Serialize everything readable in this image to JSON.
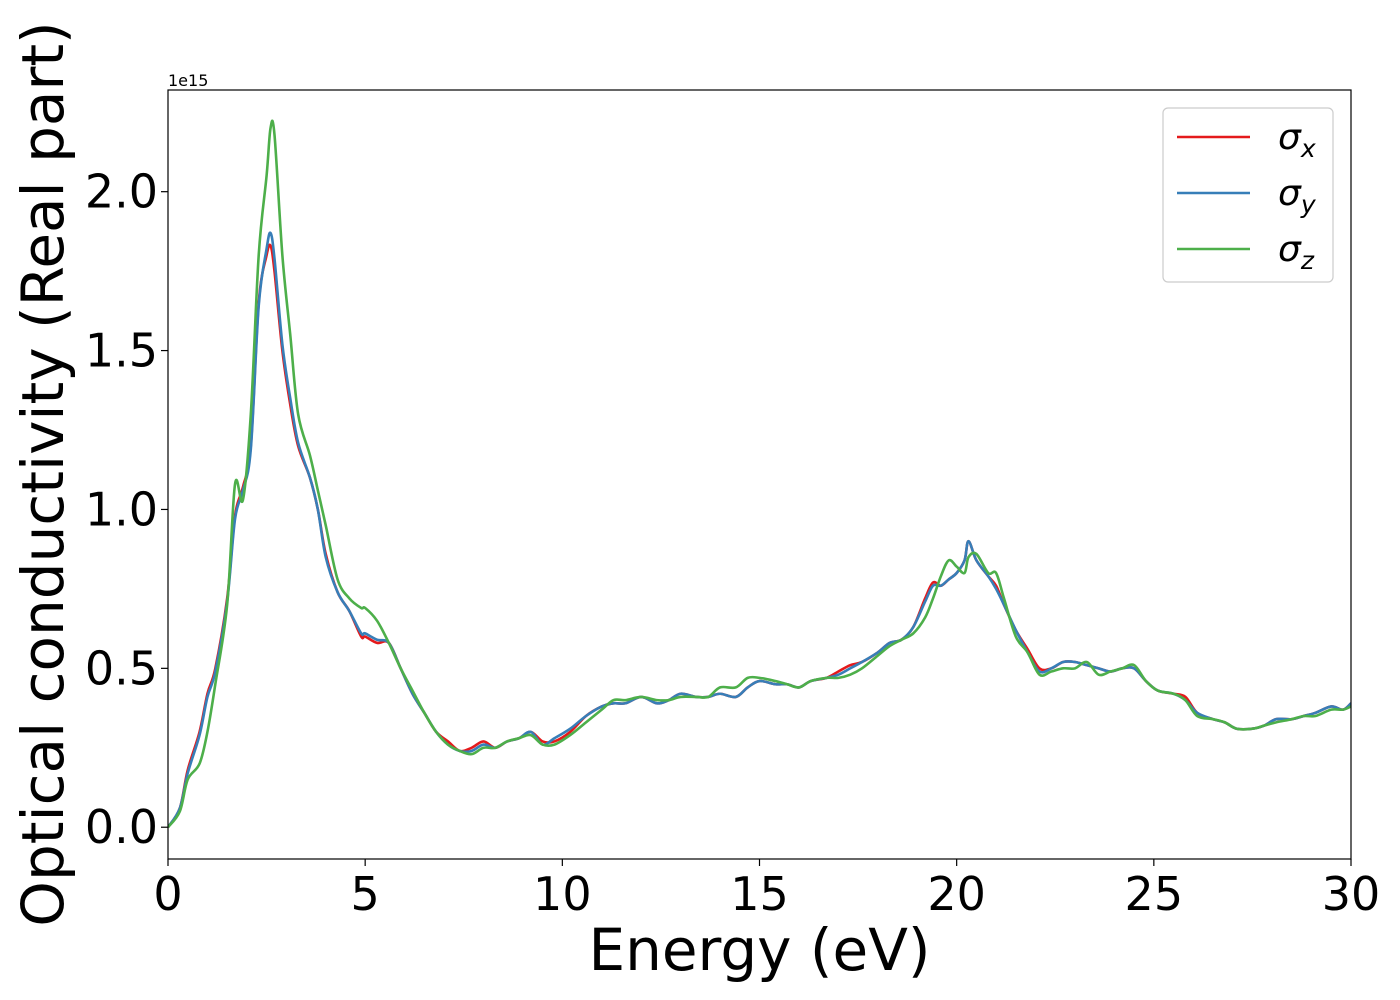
{
  "chart_data": {
    "type": "line",
    "xlabel": "Energy (eV)",
    "ylabel": "Optical conductivity (Real part)",
    "y_offset_label": "1e15",
    "xlim": [
      0,
      30
    ],
    "ylim": [
      -0.1,
      2.32
    ],
    "xticks": [
      0,
      5,
      10,
      15,
      20,
      25,
      30
    ],
    "xtick_labels": [
      "0",
      "5",
      "10",
      "15",
      "20",
      "25",
      "30"
    ],
    "yticks": [
      0.0,
      0.5,
      1.0,
      1.5,
      2.0
    ],
    "ytick_labels": [
      "0.0",
      "0.5",
      "1.0",
      "1.5",
      "2.0"
    ],
    "grid": false,
    "legend_position": "top-right",
    "series": [
      {
        "name": "σx",
        "sym": "σ",
        "sub": "x",
        "color": "#e41a1c",
        "x": [
          0,
          0.3,
          0.5,
          0.8,
          1.0,
          1.2,
          1.5,
          1.7,
          1.9,
          2.1,
          2.3,
          2.5,
          2.6,
          2.7,
          2.9,
          3.1,
          3.3,
          3.6,
          3.8,
          4.0,
          4.3,
          4.6,
          4.9,
          5.0,
          5.3,
          5.6,
          5.9,
          6.2,
          6.5,
          6.8,
          7.1,
          7.4,
          7.7,
          8.0,
          8.3,
          8.6,
          8.9,
          9.2,
          9.5,
          9.8,
          10.2,
          10.6,
          11.0,
          11.3,
          11.6,
          12.0,
          12.4,
          12.7,
          13.0,
          13.4,
          13.7,
          14.0,
          14.4,
          14.7,
          15.0,
          15.4,
          15.7,
          16.0,
          16.3,
          16.7,
          17.0,
          17.3,
          17.6,
          18.0,
          18.3,
          18.6,
          18.9,
          19.2,
          19.4,
          19.6,
          19.8,
          20.0,
          20.2,
          20.3,
          20.5,
          20.8,
          21.0,
          21.2,
          21.5,
          21.8,
          22.1,
          22.4,
          22.7,
          23.0,
          23.3,
          23.6,
          23.9,
          24.2,
          24.5,
          24.8,
          25.1,
          25.5,
          25.8,
          26.1,
          26.5,
          26.8,
          27.1,
          27.5,
          27.8,
          28.1,
          28.5,
          28.8,
          29.1,
          29.5,
          29.8,
          30
        ],
        "y": [
          0.0,
          0.06,
          0.18,
          0.3,
          0.42,
          0.5,
          0.72,
          0.98,
          1.07,
          1.2,
          1.65,
          1.8,
          1.83,
          1.75,
          1.5,
          1.33,
          1.2,
          1.1,
          1.0,
          0.86,
          0.74,
          0.68,
          0.6,
          0.6,
          0.58,
          0.58,
          0.5,
          0.42,
          0.36,
          0.3,
          0.27,
          0.24,
          0.25,
          0.27,
          0.25,
          0.27,
          0.28,
          0.3,
          0.27,
          0.27,
          0.3,
          0.35,
          0.38,
          0.39,
          0.39,
          0.41,
          0.39,
          0.4,
          0.42,
          0.41,
          0.41,
          0.42,
          0.41,
          0.44,
          0.46,
          0.45,
          0.45,
          0.44,
          0.46,
          0.47,
          0.49,
          0.51,
          0.52,
          0.55,
          0.58,
          0.59,
          0.63,
          0.72,
          0.77,
          0.76,
          0.78,
          0.8,
          0.84,
          0.9,
          0.84,
          0.79,
          0.76,
          0.7,
          0.62,
          0.56,
          0.5,
          0.5,
          0.52,
          0.52,
          0.51,
          0.5,
          0.49,
          0.5,
          0.5,
          0.46,
          0.43,
          0.42,
          0.41,
          0.36,
          0.34,
          0.33,
          0.31,
          0.31,
          0.32,
          0.34,
          0.34,
          0.35,
          0.36,
          0.38,
          0.37,
          0.39
        ]
      },
      {
        "name": "σy",
        "sym": "σ",
        "sub": "y",
        "color": "#377eb8",
        "x": [
          0,
          0.3,
          0.5,
          0.8,
          1.0,
          1.2,
          1.5,
          1.7,
          1.9,
          2.1,
          2.3,
          2.5,
          2.6,
          2.7,
          2.9,
          3.1,
          3.3,
          3.6,
          3.8,
          4.0,
          4.3,
          4.6,
          4.9,
          5.0,
          5.3,
          5.6,
          5.9,
          6.2,
          6.5,
          6.8,
          7.1,
          7.4,
          7.7,
          8.0,
          8.3,
          8.6,
          8.9,
          9.2,
          9.5,
          9.8,
          10.2,
          10.6,
          11.0,
          11.3,
          11.6,
          12.0,
          12.4,
          12.7,
          13.0,
          13.4,
          13.7,
          14.0,
          14.4,
          14.7,
          15.0,
          15.4,
          15.7,
          16.0,
          16.3,
          16.7,
          17.0,
          17.3,
          17.6,
          18.0,
          18.3,
          18.6,
          18.9,
          19.2,
          19.4,
          19.6,
          19.8,
          20.0,
          20.2,
          20.3,
          20.5,
          20.8,
          21.0,
          21.2,
          21.5,
          21.8,
          22.1,
          22.4,
          22.7,
          23.0,
          23.3,
          23.6,
          23.9,
          24.2,
          24.5,
          24.8,
          25.1,
          25.5,
          25.8,
          26.1,
          26.5,
          26.8,
          27.1,
          27.5,
          27.8,
          28.1,
          28.5,
          28.8,
          29.1,
          29.5,
          29.8,
          30
        ],
        "y": [
          0.0,
          0.06,
          0.17,
          0.29,
          0.41,
          0.49,
          0.71,
          0.97,
          1.06,
          1.19,
          1.64,
          1.82,
          1.87,
          1.79,
          1.52,
          1.35,
          1.21,
          1.1,
          1.0,
          0.85,
          0.74,
          0.68,
          0.61,
          0.61,
          0.59,
          0.58,
          0.5,
          0.42,
          0.36,
          0.3,
          0.26,
          0.24,
          0.24,
          0.26,
          0.25,
          0.27,
          0.28,
          0.3,
          0.26,
          0.28,
          0.31,
          0.35,
          0.38,
          0.39,
          0.39,
          0.41,
          0.39,
          0.4,
          0.42,
          0.41,
          0.41,
          0.42,
          0.41,
          0.44,
          0.46,
          0.45,
          0.45,
          0.44,
          0.46,
          0.47,
          0.48,
          0.5,
          0.52,
          0.55,
          0.58,
          0.59,
          0.63,
          0.71,
          0.76,
          0.76,
          0.78,
          0.8,
          0.84,
          0.9,
          0.84,
          0.79,
          0.75,
          0.7,
          0.62,
          0.55,
          0.49,
          0.5,
          0.52,
          0.52,
          0.51,
          0.5,
          0.49,
          0.5,
          0.5,
          0.46,
          0.43,
          0.42,
          0.4,
          0.36,
          0.34,
          0.33,
          0.31,
          0.31,
          0.32,
          0.34,
          0.34,
          0.35,
          0.36,
          0.38,
          0.37,
          0.39
        ]
      },
      {
        "name": "σz",
        "sym": "σ",
        "sub": "z",
        "color": "#4daf4a",
        "x": [
          0,
          0.3,
          0.5,
          0.8,
          1.0,
          1.2,
          1.5,
          1.7,
          1.9,
          2.1,
          2.3,
          2.5,
          2.6,
          2.7,
          2.9,
          3.1,
          3.3,
          3.6,
          3.8,
          4.0,
          4.3,
          4.6,
          4.9,
          5.0,
          5.3,
          5.6,
          5.9,
          6.2,
          6.5,
          6.8,
          7.1,
          7.4,
          7.7,
          8.0,
          8.3,
          8.6,
          8.9,
          9.2,
          9.5,
          9.8,
          10.2,
          10.6,
          11.0,
          11.3,
          11.6,
          12.0,
          12.4,
          12.7,
          13.0,
          13.4,
          13.7,
          14.0,
          14.4,
          14.7,
          15.0,
          15.4,
          15.7,
          16.0,
          16.3,
          16.7,
          17.0,
          17.3,
          17.6,
          18.0,
          18.3,
          18.6,
          18.9,
          19.2,
          19.4,
          19.6,
          19.8,
          20.0,
          20.2,
          20.3,
          20.5,
          20.8,
          21.0,
          21.2,
          21.5,
          21.8,
          22.1,
          22.4,
          22.7,
          23.0,
          23.3,
          23.6,
          23.9,
          24.2,
          24.5,
          24.8,
          25.1,
          25.5,
          25.8,
          26.1,
          26.5,
          26.8,
          27.1,
          27.5,
          27.8,
          28.1,
          28.5,
          28.8,
          29.1,
          29.5,
          29.8,
          30
        ],
        "y": [
          0.0,
          0.05,
          0.15,
          0.2,
          0.3,
          0.45,
          0.7,
          1.08,
          1.03,
          1.3,
          1.8,
          2.05,
          2.2,
          2.18,
          1.8,
          1.55,
          1.3,
          1.17,
          1.06,
          0.95,
          0.78,
          0.72,
          0.69,
          0.69,
          0.65,
          0.58,
          0.5,
          0.43,
          0.36,
          0.3,
          0.26,
          0.24,
          0.23,
          0.25,
          0.25,
          0.27,
          0.28,
          0.29,
          0.26,
          0.26,
          0.29,
          0.33,
          0.37,
          0.4,
          0.4,
          0.41,
          0.4,
          0.4,
          0.41,
          0.41,
          0.41,
          0.44,
          0.44,
          0.47,
          0.47,
          0.46,
          0.45,
          0.44,
          0.46,
          0.47,
          0.47,
          0.48,
          0.5,
          0.54,
          0.57,
          0.59,
          0.61,
          0.66,
          0.72,
          0.79,
          0.84,
          0.82,
          0.8,
          0.85,
          0.86,
          0.8,
          0.8,
          0.72,
          0.6,
          0.55,
          0.48,
          0.49,
          0.5,
          0.5,
          0.52,
          0.48,
          0.49,
          0.5,
          0.51,
          0.46,
          0.43,
          0.42,
          0.4,
          0.35,
          0.34,
          0.33,
          0.31,
          0.31,
          0.32,
          0.33,
          0.34,
          0.35,
          0.35,
          0.37,
          0.37,
          0.38
        ]
      }
    ]
  }
}
